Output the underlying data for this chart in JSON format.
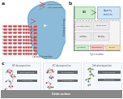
{
  "figure_bg": "#ffffff",
  "panel_a": {
    "label": "a",
    "bg": "#f5f5f5",
    "electrolyte_color": "#5b9ec9",
    "electrolyte_alpha": 0.7,
    "lattice_line_color": "#999999",
    "lattice_bg": "#e8eef4",
    "dot_color_dark": "#cc3333",
    "dot_color_light": "#dddddd",
    "text_cathode": "Cathode Interphase",
    "legend_red_label": "Cation dissolution",
    "legend_gray_label": "Lattice deformation",
    "arrow_red": "#dd3333",
    "arrow_gray": "#888888"
  },
  "panel_b": {
    "label": "b",
    "bg": "#ffffff",
    "ylabel": "Discharge Energy",
    "xlabel": "Cycle number",
    "green_box_color": "#c5e8c5",
    "green_box_edge": "#55aa66",
    "blue_box_color": "#c5dff0",
    "blue_box_edge": "#5588cc",
    "dashed_box_color": "#f0f0f0",
    "dashed_box_edge": "#777777",
    "inner_box_color": "#e8e8e8",
    "inner_box_edge": "#aaaaaa",
    "green_label": "CEI",
    "blue_label": "Capacity\nretention",
    "inner_labels": [
      "TM dissolution",
      "Microcracks",
      "Phase\ntransition",
      "Particle\ncracking"
    ],
    "bottom_label_colors": [
      "#c8e8c8",
      "#f5c0c0",
      "#f5d8a0"
    ],
    "bottom_labels": [
      "Activation",
      "Degradation",
      "Failure"
    ],
    "bottom_edge_colors": [
      "#88cc88",
      "#dd8888",
      "#ddaa44"
    ],
    "axis_color": "#555555",
    "tick_color": "#777777"
  },
  "panel_c": {
    "label": "c",
    "bg": "#e8eff8",
    "section_bg": "#eef4fb",
    "section_border": "#aaaaaa",
    "surface_color": "#888888",
    "surface_label": "Oxide surface",
    "section_labels": [
      "HF decomposition",
      "EC decomposition",
      "Salt decomposition"
    ],
    "mol_red": "#dd3333",
    "mol_white": "#ffffff",
    "mol_gray": "#888888",
    "mol_orange": "#dd8822",
    "mol_green": "#44aa44",
    "mol_blue": "#4466cc",
    "bar_color": "#555555",
    "bar_text_color": "#ffffff",
    "arrow_color": "#888888"
  }
}
